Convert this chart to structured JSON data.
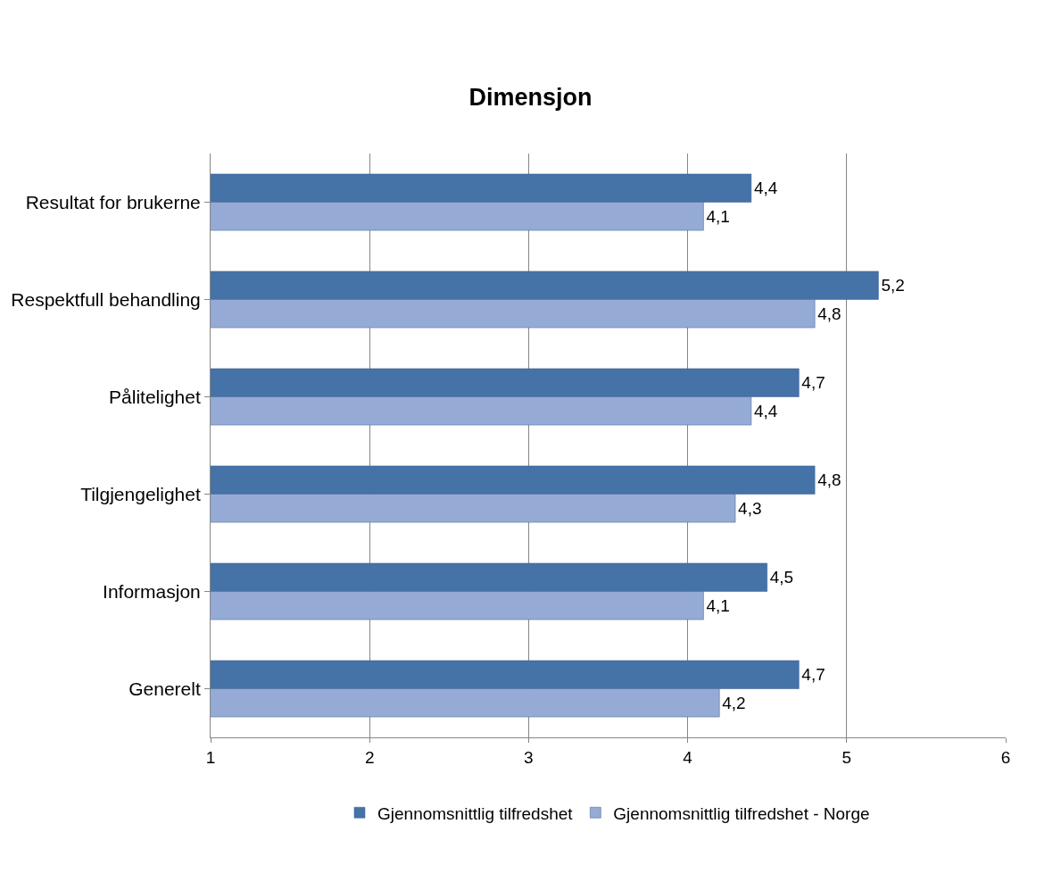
{
  "chart_data": {
    "type": "bar",
    "orientation": "horizontal",
    "title": "Dimensjon",
    "categories": [
      "Resultat for brukerne",
      "Respektfull behandling",
      "Pålitelighet",
      "Tilgjengelighet",
      "Informasjon",
      "Generelt"
    ],
    "series": [
      {
        "name": "Gjennomsnittlig tilfredshet",
        "color": "#4572a7",
        "values": [
          4.4,
          5.2,
          4.7,
          4.8,
          4.5,
          4.7
        ],
        "value_labels": [
          "4,4",
          "5,2",
          "4,7",
          "4,8",
          "4,5",
          "4,7"
        ]
      },
      {
        "name": "Gjennomsnittlig tilfredshet - Norge",
        "color": "#95abd5",
        "values": [
          4.1,
          4.8,
          4.4,
          4.3,
          4.1,
          4.2
        ],
        "value_labels": [
          "4,1",
          "4,8",
          "4,4",
          "4,3",
          "4,1",
          "4,2"
        ]
      }
    ],
    "xlim": [
      1,
      6
    ],
    "xticks": [
      1,
      2,
      3,
      4,
      5,
      6
    ],
    "grid": "x",
    "legend": "bottom"
  }
}
